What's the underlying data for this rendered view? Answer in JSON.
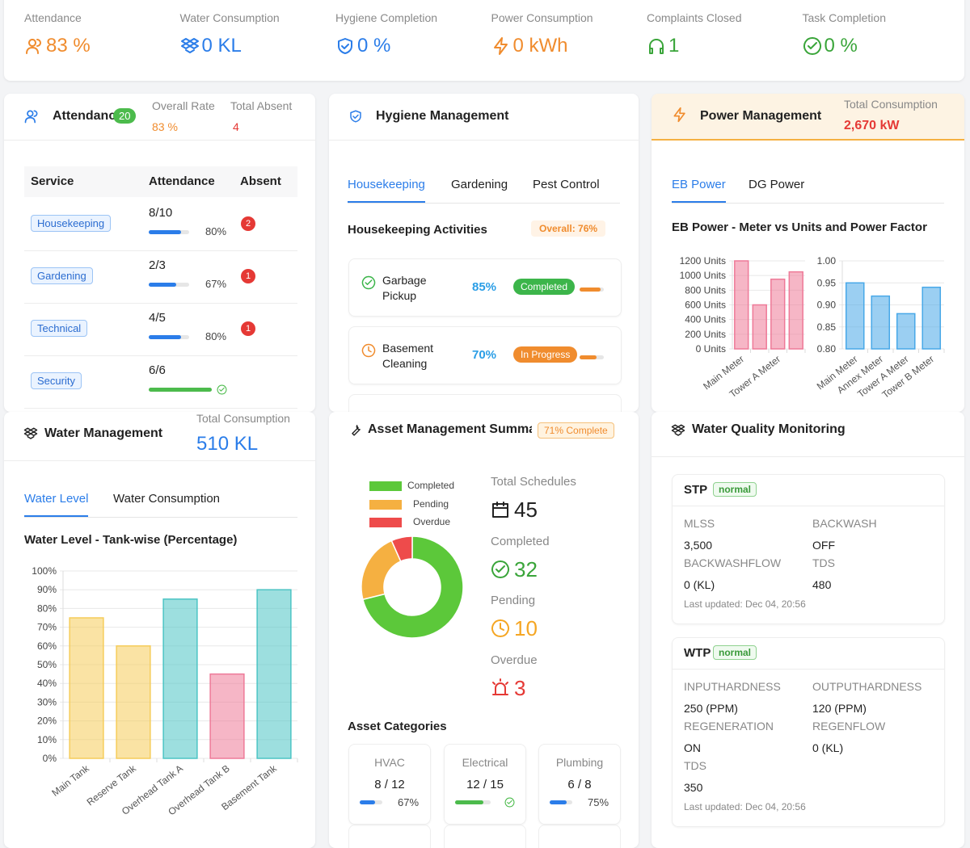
{
  "kpis": [
    {
      "label": "Attendance",
      "value": "83 %",
      "color": "#f08c2e",
      "icon": "user"
    },
    {
      "label": "Water Consumption",
      "value": "0 KL",
      "color": "#2b7de9",
      "icon": "drop"
    },
    {
      "label": "Hygiene Completion",
      "value": "0 %",
      "color": "#2b7de9",
      "icon": "shield"
    },
    {
      "label": "Power Consumption",
      "value": "0 kWh",
      "color": "#f08c2e",
      "icon": "bolt"
    },
    {
      "label": "Complaints Closed",
      "value": "1",
      "color": "#3aa53a",
      "icon": "head"
    },
    {
      "label": "Task Completion",
      "value": "0 %",
      "color": "#3aa53a",
      "icon": "check"
    }
  ],
  "attendance": {
    "title": "Attendance",
    "badge": "20",
    "overall_label": "Overall Rate",
    "overall": "83 %",
    "absent_label": "Total Absent",
    "absent": "4",
    "columns": [
      "Service",
      "Attendance",
      "Absent"
    ],
    "rows": [
      {
        "service": "Housekeeping",
        "present": "8/10",
        "rate": 80,
        "rate_label": "80%",
        "absent": 2
      },
      {
        "service": "Gardening",
        "present": "2/3",
        "rate": 67,
        "rate_label": "67%",
        "absent": 1
      },
      {
        "service": "Technical",
        "present": "4/5",
        "rate": 80,
        "rate_label": "80%",
        "absent": 1
      },
      {
        "service": "Security",
        "present": "6/6",
        "rate": 100
      }
    ]
  },
  "hygiene": {
    "title": "Hygiene Management",
    "tabs": [
      "Housekeeping",
      "Gardening",
      "Pest Control"
    ],
    "section": "Housekeeping Activities",
    "overall": "Overall: 76%",
    "items": [
      {
        "name": "Garbage Pickup",
        "percent": 85,
        "percent_label": "85%",
        "status": "Completed",
        "status_color": "#3cb54a"
      },
      {
        "name": "Basement Cleaning",
        "percent": 70,
        "percent_label": "70%",
        "status": "In Progress",
        "status_color": "#f08c2e"
      }
    ]
  },
  "power": {
    "title": "Power Management",
    "total_label": "Total Consumption",
    "total": "2,670 kW",
    "tabs": [
      "EB Power",
      "DG Power"
    ],
    "chart_title": "EB Power - Meter vs Units and Power Factor",
    "units_chart": {
      "type": "bar",
      "categories": [
        "Main Meter",
        null,
        "Tower A Meter",
        null
      ],
      "values": [
        1200,
        600,
        950,
        1050
      ],
      "color": "#ee7a98",
      "ylim": [
        0,
        1200
      ],
      "yticks": [
        {
          "value": 0,
          "label": "0 Units"
        },
        {
          "value": 200,
          "label": "200 Units"
        },
        {
          "value": 400,
          "label": "400 Units"
        },
        {
          "value": 600,
          "label": "600 Units"
        },
        {
          "value": 800,
          "label": "800 Units"
        },
        {
          "value": 1000,
          "label": "1000 Units"
        },
        {
          "value": 1200,
          "label": "1200 Units"
        }
      ]
    },
    "pf_chart": {
      "type": "bar",
      "categories": [
        "Main Meter",
        "Annex Meter",
        "Tower A Meter",
        "Tower B Meter"
      ],
      "values": [
        0.95,
        0.92,
        0.88,
        0.94
      ],
      "color": "#48a8e8",
      "ylim": [
        0.8,
        1
      ],
      "yticks": [
        {
          "value": 0.8,
          "label": "0.80"
        },
        0.85,
        {
          "value": 0.9,
          "label": "0.90"
        },
        0.95,
        {
          "value": 1,
          "label": "1.00"
        }
      ]
    }
  },
  "water": {
    "title": "Water Management",
    "total_label": "Total Consumption",
    "total": "510 KL",
    "tabs": [
      "Water Level",
      "Water Consumption"
    ],
    "chart": {
      "type": "bar",
      "title": "Water Level - Tank-wise (Percentage)",
      "categories": [
        "Main Tank",
        "Reserve Tank",
        "Overhead Tank A",
        "Overhead Tank B",
        "Basement Tank"
      ],
      "values": [
        75,
        60,
        85,
        45,
        90
      ],
      "colors": [
        "#f5cc5a",
        "#f5cc5a",
        "#4cc4c4",
        "#ee7a98",
        "#4cc4c4"
      ],
      "ylim": [
        0,
        100
      ],
      "yticks": [
        {
          "value": 0,
          "label": "0%"
        },
        {
          "value": 10,
          "label": "10%"
        },
        {
          "value": 20,
          "label": "20%"
        },
        {
          "value": 30,
          "label": "30%"
        },
        {
          "value": 40,
          "label": "40%"
        },
        {
          "value": 50,
          "label": "50%"
        },
        {
          "value": 60,
          "label": "60%"
        },
        {
          "value": 70,
          "label": "70%"
        },
        {
          "value": 80,
          "label": "80%"
        },
        {
          "value": 90,
          "label": "90%"
        },
        {
          "value": 100,
          "label": "100%"
        }
      ]
    }
  },
  "asset": {
    "title": "Asset Management Summary",
    "badge": "71% Complete",
    "legend": [
      {
        "name": "Completed",
        "color": "#5cc83a"
      },
      {
        "name": "Pending",
        "color": "#f5b041"
      },
      {
        "name": "Overdue",
        "color": "#ee4b4b"
      }
    ],
    "stats": [
      {
        "label": "Total Schedules",
        "value": 45,
        "color": "#222",
        "icon": "cal"
      },
      {
        "label": "Completed",
        "value": 32,
        "color": "#3aa53a",
        "icon": "check"
      },
      {
        "label": "Pending",
        "value": 10,
        "color": "#f5a623",
        "icon": "clock"
      },
      {
        "label": "Overdue",
        "value": 3,
        "color": "#e53935",
        "icon": "alarm"
      }
    ],
    "categories_title": "Asset Categories",
    "categories": [
      {
        "name": "HVAC",
        "count": "8 / 12",
        "rate": 67,
        "rate_label": "67%"
      },
      {
        "name": "Electrical",
        "count": "12 / 15",
        "rate": 80
      },
      {
        "name": "Plumbing",
        "count": "6 / 8",
        "rate": 75,
        "rate_label": "75%"
      }
    ]
  },
  "quality": {
    "title": "Water Quality Monitoring",
    "plants": [
      {
        "name": "STP",
        "status": "normal",
        "fields": [
          {
            "label": "MLSS",
            "value": "3,500"
          },
          {
            "label": "BACKWASH",
            "value": "OFF"
          },
          {
            "label": "BACKWASHFLOW",
            "value": "0 (KL)"
          },
          {
            "label": "TDS",
            "value": "480"
          }
        ],
        "updated": "Last updated: Dec 04, 20:56"
      },
      {
        "name": "WTP",
        "status": "normal",
        "fields": [
          {
            "label": "INPUTHARDNESS",
            "value": "250 (PPM)"
          },
          {
            "label": "OUTPUTHARDNESS",
            "value": "120 (PPM)"
          },
          {
            "label": "REGENERATION",
            "value": "ON"
          },
          {
            "label": "REGENFLOW",
            "value": "0 (KL)"
          },
          {
            "label": "TDS",
            "value": "350"
          }
        ],
        "updated": "Last updated: Dec 04, 20:56"
      }
    ]
  }
}
